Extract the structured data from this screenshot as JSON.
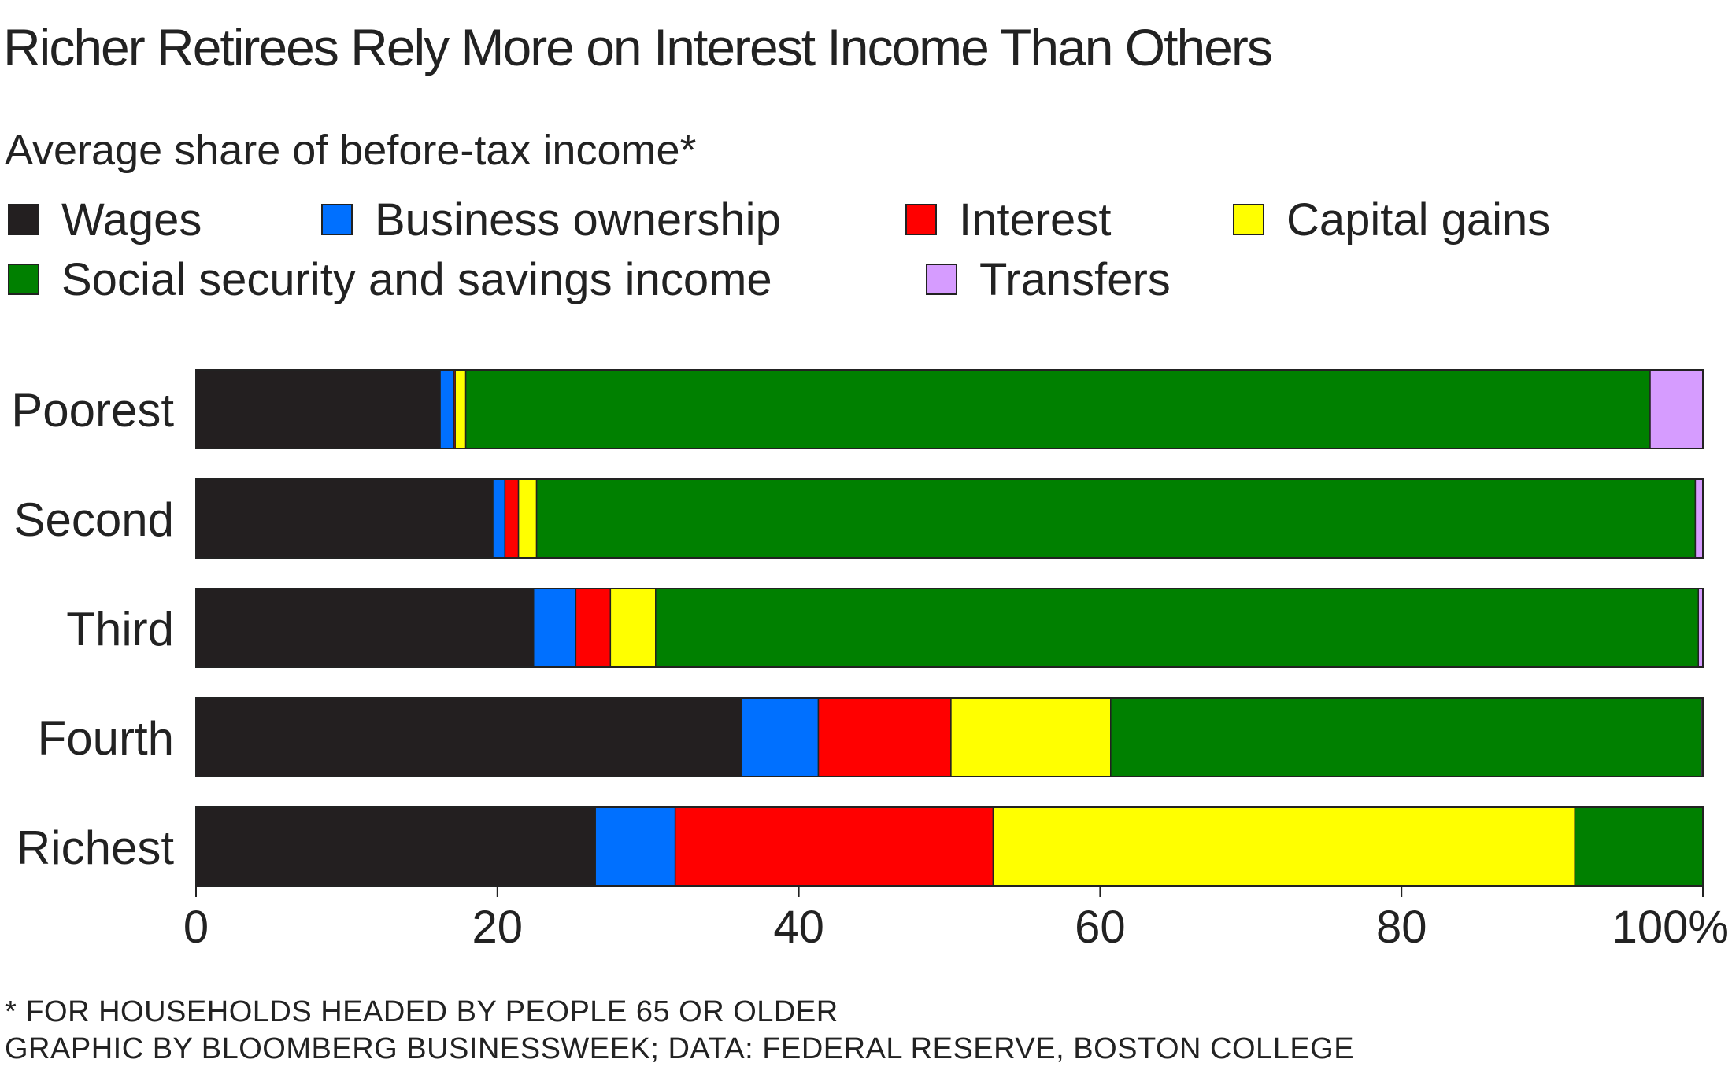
{
  "chart_data": {
    "type": "bar",
    "orientation": "horizontal",
    "stacked": true,
    "title": "Richer Retirees Rely More on Interest Income Than Others",
    "subtitle": "Average share of before-tax income*",
    "categories": [
      "Poorest",
      "Second",
      "Third",
      "Fourth",
      "Richest"
    ],
    "series": [
      {
        "name": "Wages",
        "color": "#231f20",
        "values": [
          16.2,
          19.7,
          22.4,
          36.2,
          26.5
        ]
      },
      {
        "name": "Business ownership",
        "color": "#0070ff",
        "values": [
          0.9,
          0.8,
          2.8,
          5.1,
          5.3
        ]
      },
      {
        "name": "Interest",
        "color": "#ff0000",
        "values": [
          0.1,
          0.9,
          2.3,
          8.8,
          21.1
        ]
      },
      {
        "name": "Capital gains",
        "color": "#ffff00",
        "values": [
          0.7,
          1.2,
          3.0,
          10.6,
          38.6
        ]
      },
      {
        "name": "Social security and savings income",
        "color": "#008000",
        "values": [
          78.6,
          76.9,
          69.2,
          39.2,
          8.5
        ]
      },
      {
        "name": "Transfers",
        "color": "#d69cff",
        "values": [
          3.5,
          0.5,
          0.3,
          0.1,
          0.0
        ]
      }
    ],
    "xlim": [
      0,
      100
    ],
    "xticks": [
      "0",
      "20",
      "40",
      "60",
      "80",
      "100%"
    ],
    "xtick_values": [
      0,
      20,
      40,
      60,
      80,
      100
    ],
    "grid": false,
    "legend_position": "top"
  },
  "footnote": "* FOR HOUSEHOLDS HEADED BY PEOPLE 65 OR OLDER",
  "source": "GRAPHIC BY BLOOMBERG BUSINESSWEEK; DATA: FEDERAL RESERVE, BOSTON COLLEGE"
}
